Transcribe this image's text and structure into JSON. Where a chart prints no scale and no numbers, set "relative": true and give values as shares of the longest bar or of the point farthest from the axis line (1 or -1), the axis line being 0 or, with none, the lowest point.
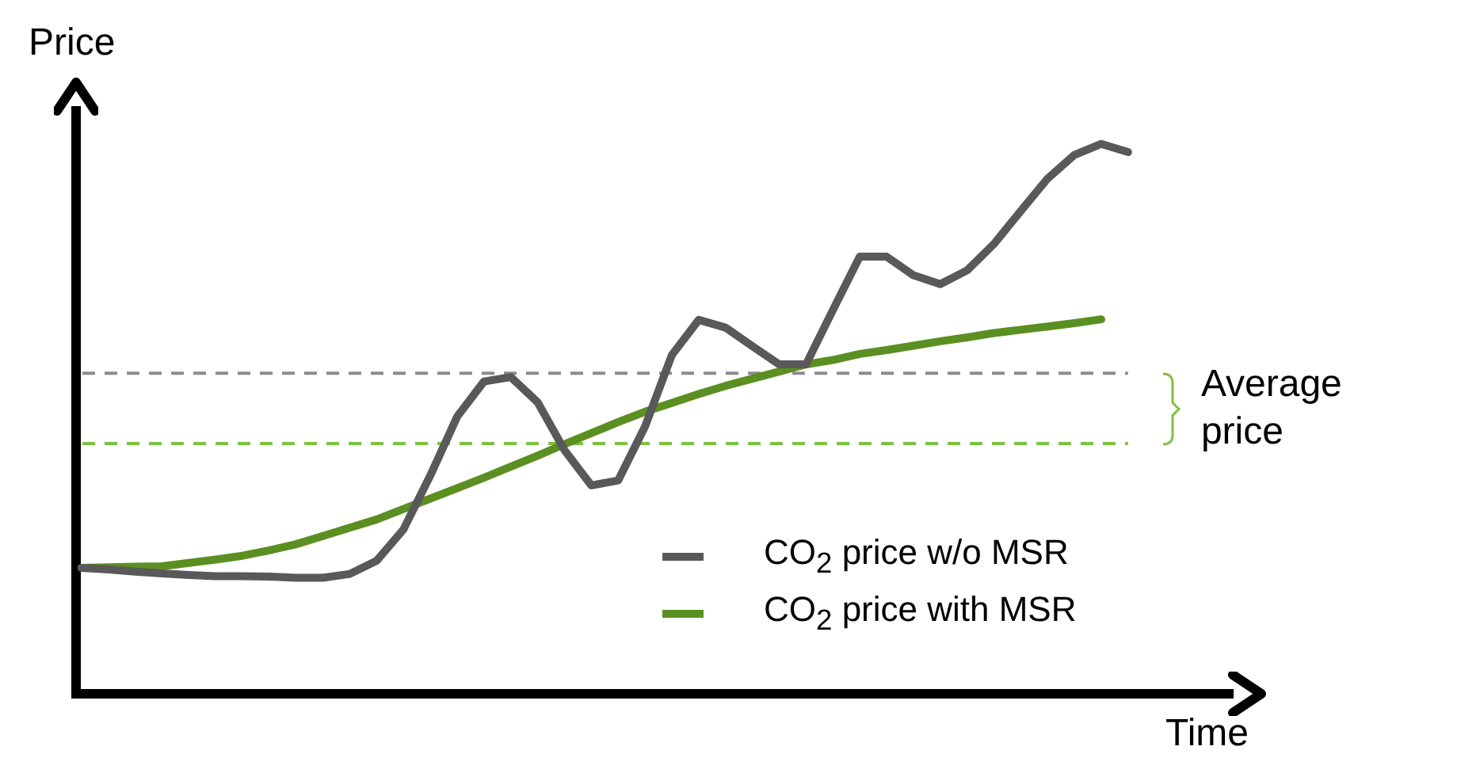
{
  "chart_data": {
    "type": "line",
    "relative": true,
    "xlabel": "Time",
    "ylabel": "Price",
    "grid": false,
    "legend": "bottom right",
    "marker": "none",
    "annotations": [
      "Average price"
    ],
    "categories": [
      null,
      null,
      null,
      null,
      null,
      null,
      null,
      null,
      null,
      null,
      null,
      null,
      null,
      null,
      null,
      null,
      null,
      null,
      null,
      null,
      null,
      null,
      null,
      null,
      null,
      null,
      null,
      null,
      null,
      null,
      null,
      null,
      null,
      null,
      null,
      null,
      null,
      null,
      null,
      null
    ],
    "series": [
      {
        "name": "CO$_{2}$ price w/o MSR",
        "color": "#595959",
        "values": [
          0.229,
          0.226,
          0.222,
          0.219,
          0.216,
          0.214,
          0.214,
          0.213,
          0.211,
          0.211,
          0.218,
          0.242,
          0.299,
          0.397,
          0.504,
          0.568,
          0.576,
          0.53,
          0.443,
          0.379,
          0.388,
          0.486,
          0.616,
          0.68,
          0.666,
          0.632,
          0.599,
          0.599,
          0.698,
          0.795,
          0.795,
          0.761,
          0.745,
          0.77,
          0.818,
          0.878,
          0.937,
          0.98,
          1,
          0.985
        ]
      },
      {
        "name": "CO$_{2}$ price with MSR",
        "color": "#5b8f22",
        "values": [
          0.229,
          0.23,
          0.231,
          0.232,
          0.238,
          0.244,
          0.251,
          0.261,
          0.272,
          0.287,
          0.302,
          0.317,
          0.336,
          0.355,
          0.374,
          0.393,
          0.413,
          0.433,
          0.454,
          0.474,
          0.494,
          0.513,
          0.529,
          0.545,
          0.56,
          0.573,
          0.586,
          0.599,
          0.607,
          0.618,
          0.625,
          0.633,
          0.641,
          0.648,
          0.656,
          0.662,
          0.668,
          0.674,
          0.681,
          null
        ]
      }
    ],
    "ref_lines": [
      {
        "axis": "y",
        "value": 0.583,
        "color": "#8c8c8c",
        "line_style": "dashed"
      },
      {
        "axis": "y",
        "value": 0.455,
        "color": "#7cc242",
        "line_style": "dashed"
      }
    ]
  }
}
